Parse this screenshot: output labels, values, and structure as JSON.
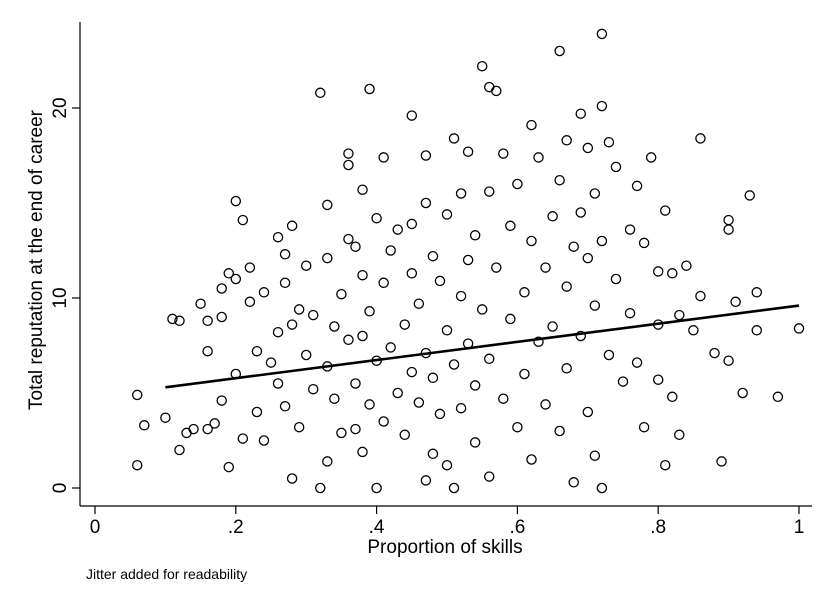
{
  "chart_data": {
    "type": "scatter",
    "xlabel": "Proportion of skills",
    "ylabel": "Total reputation at the end of career",
    "xlim": [
      0,
      1
    ],
    "ylim": [
      -0.5,
      24.5
    ],
    "x_ticks": [
      0,
      0.2,
      0.4,
      0.6,
      0.8,
      1
    ],
    "x_tick_labels": [
      "0",
      ".2",
      ".4",
      ".6",
      ".8",
      "1"
    ],
    "y_ticks": [
      0,
      10,
      20
    ],
    "y_tick_labels": [
      "0",
      "10",
      "20"
    ],
    "grid": false,
    "legend": "none",
    "note": "Jitter added for readability",
    "marker": "hollow-circle",
    "fit_line": {
      "type": "linear",
      "x": [
        0.1,
        1.0
      ],
      "y": [
        5.3,
        9.6
      ]
    },
    "series": [
      {
        "points": [
          [
            0.06,
            4.9
          ],
          [
            0.06,
            1.2
          ],
          [
            0.07,
            3.3
          ],
          [
            0.1,
            3.7
          ],
          [
            0.11,
            8.9
          ],
          [
            0.12,
            8.8
          ],
          [
            0.12,
            2.0
          ],
          [
            0.13,
            2.9
          ],
          [
            0.14,
            3.1
          ],
          [
            0.15,
            9.7
          ],
          [
            0.16,
            3.1
          ],
          [
            0.16,
            7.2
          ],
          [
            0.16,
            8.8
          ],
          [
            0.17,
            3.4
          ],
          [
            0.18,
            10.5
          ],
          [
            0.18,
            9.0
          ],
          [
            0.18,
            4.6
          ],
          [
            0.19,
            11.3
          ],
          [
            0.19,
            1.1
          ],
          [
            0.2,
            15.1
          ],
          [
            0.2,
            11.0
          ],
          [
            0.2,
            6.0
          ],
          [
            0.21,
            14.1
          ],
          [
            0.21,
            2.6
          ],
          [
            0.22,
            11.6
          ],
          [
            0.22,
            9.8
          ],
          [
            0.23,
            7.2
          ],
          [
            0.23,
            4.0
          ],
          [
            0.24,
            10.3
          ],
          [
            0.24,
            2.5
          ],
          [
            0.25,
            6.6
          ],
          [
            0.26,
            13.2
          ],
          [
            0.26,
            8.2
          ],
          [
            0.26,
            5.5
          ],
          [
            0.27,
            12.3
          ],
          [
            0.27,
            10.8
          ],
          [
            0.27,
            4.3
          ],
          [
            0.28,
            13.8
          ],
          [
            0.28,
            8.6
          ],
          [
            0.28,
            0.5
          ],
          [
            0.29,
            9.4
          ],
          [
            0.29,
            3.2
          ],
          [
            0.3,
            11.7
          ],
          [
            0.3,
            7.0
          ],
          [
            0.31,
            9.1
          ],
          [
            0.31,
            5.2
          ],
          [
            0.32,
            20.8
          ],
          [
            0.32,
            0.0
          ],
          [
            0.33,
            14.9
          ],
          [
            0.33,
            12.1
          ],
          [
            0.33,
            6.4
          ],
          [
            0.33,
            1.4
          ],
          [
            0.34,
            8.5
          ],
          [
            0.34,
            4.7
          ],
          [
            0.35,
            10.2
          ],
          [
            0.35,
            2.9
          ],
          [
            0.36,
            17.6
          ],
          [
            0.36,
            17.0
          ],
          [
            0.36,
            13.1
          ],
          [
            0.36,
            7.8
          ],
          [
            0.37,
            12.7
          ],
          [
            0.37,
            5.5
          ],
          [
            0.37,
            3.1
          ],
          [
            0.38,
            15.7
          ],
          [
            0.38,
            11.2
          ],
          [
            0.38,
            8.0
          ],
          [
            0.38,
            1.9
          ],
          [
            0.39,
            21.0
          ],
          [
            0.39,
            9.3
          ],
          [
            0.39,
            4.4
          ],
          [
            0.4,
            14.2
          ],
          [
            0.4,
            6.7
          ],
          [
            0.4,
            0.0
          ],
          [
            0.41,
            17.4
          ],
          [
            0.41,
            10.8
          ],
          [
            0.41,
            3.5
          ],
          [
            0.42,
            12.5
          ],
          [
            0.42,
            7.4
          ],
          [
            0.43,
            13.6
          ],
          [
            0.43,
            5.0
          ],
          [
            0.44,
            8.6
          ],
          [
            0.44,
            2.8
          ],
          [
            0.45,
            13.9
          ],
          [
            0.45,
            19.6
          ],
          [
            0.45,
            11.3
          ],
          [
            0.45,
            6.1
          ],
          [
            0.46,
            9.7
          ],
          [
            0.46,
            4.5
          ],
          [
            0.47,
            17.5
          ],
          [
            0.47,
            15.0
          ],
          [
            0.47,
            7.1
          ],
          [
            0.47,
            0.4
          ],
          [
            0.48,
            12.2
          ],
          [
            0.48,
            5.8
          ],
          [
            0.48,
            1.8
          ],
          [
            0.49,
            10.9
          ],
          [
            0.49,
            3.9
          ],
          [
            0.5,
            14.4
          ],
          [
            0.5,
            8.3
          ],
          [
            0.5,
            1.2
          ],
          [
            0.51,
            18.4
          ],
          [
            0.51,
            6.5
          ],
          [
            0.51,
            0.0
          ],
          [
            0.52,
            15.5
          ],
          [
            0.52,
            10.1
          ],
          [
            0.52,
            4.2
          ],
          [
            0.53,
            17.7
          ],
          [
            0.53,
            12.0
          ],
          [
            0.53,
            7.6
          ],
          [
            0.54,
            13.3
          ],
          [
            0.54,
            5.4
          ],
          [
            0.54,
            2.4
          ],
          [
            0.55,
            22.2
          ],
          [
            0.55,
            9.4
          ],
          [
            0.56,
            21.1
          ],
          [
            0.56,
            15.6
          ],
          [
            0.56,
            6.8
          ],
          [
            0.56,
            0.6
          ],
          [
            0.57,
            20.9
          ],
          [
            0.57,
            11.6
          ],
          [
            0.58,
            17.6
          ],
          [
            0.58,
            4.7
          ],
          [
            0.59,
            13.8
          ],
          [
            0.59,
            8.9
          ],
          [
            0.6,
            16.0
          ],
          [
            0.6,
            3.2
          ],
          [
            0.61,
            10.3
          ],
          [
            0.61,
            6.0
          ],
          [
            0.62,
            19.1
          ],
          [
            0.62,
            13.0
          ],
          [
            0.62,
            1.5
          ],
          [
            0.63,
            17.4
          ],
          [
            0.63,
            7.7
          ],
          [
            0.64,
            11.6
          ],
          [
            0.64,
            4.4
          ],
          [
            0.65,
            14.3
          ],
          [
            0.65,
            8.5
          ],
          [
            0.66,
            23.0
          ],
          [
            0.66,
            16.2
          ],
          [
            0.66,
            3.0
          ],
          [
            0.67,
            18.3
          ],
          [
            0.67,
            10.6
          ],
          [
            0.67,
            6.3
          ],
          [
            0.68,
            12.7
          ],
          [
            0.68,
            0.3
          ],
          [
            0.69,
            19.7
          ],
          [
            0.69,
            14.5
          ],
          [
            0.69,
            8.0
          ],
          [
            0.7,
            17.9
          ],
          [
            0.7,
            12.1
          ],
          [
            0.7,
            4.0
          ],
          [
            0.71,
            15.5
          ],
          [
            0.71,
            9.6
          ],
          [
            0.71,
            1.7
          ],
          [
            0.72,
            23.9
          ],
          [
            0.72,
            20.1
          ],
          [
            0.72,
            0.0
          ],
          [
            0.72,
            13.0
          ],
          [
            0.73,
            18.2
          ],
          [
            0.73,
            7.0
          ],
          [
            0.74,
            16.9
          ],
          [
            0.74,
            11.0
          ],
          [
            0.75,
            5.6
          ],
          [
            0.76,
            13.6
          ],
          [
            0.76,
            9.2
          ],
          [
            0.77,
            15.9
          ],
          [
            0.77,
            6.6
          ],
          [
            0.78,
            12.9
          ],
          [
            0.78,
            3.2
          ],
          [
            0.79,
            17.4
          ],
          [
            0.8,
            11.4
          ],
          [
            0.8,
            8.6
          ],
          [
            0.8,
            5.7
          ],
          [
            0.81,
            14.6
          ],
          [
            0.81,
            1.2
          ],
          [
            0.82,
            11.3
          ],
          [
            0.82,
            4.8
          ],
          [
            0.83,
            9.1
          ],
          [
            0.83,
            2.8
          ],
          [
            0.84,
            11.7
          ],
          [
            0.85,
            8.3
          ],
          [
            0.86,
            18.4
          ],
          [
            0.86,
            10.1
          ],
          [
            0.88,
            7.1
          ],
          [
            0.89,
            1.4
          ],
          [
            0.9,
            14.1
          ],
          [
            0.9,
            13.6
          ],
          [
            0.9,
            6.7
          ],
          [
            0.91,
            9.8
          ],
          [
            0.92,
            5.0
          ],
          [
            0.93,
            15.4
          ],
          [
            0.94,
            10.3
          ],
          [
            0.94,
            8.3
          ],
          [
            0.97,
            4.8
          ],
          [
            1.0,
            8.4
          ]
        ]
      }
    ]
  }
}
